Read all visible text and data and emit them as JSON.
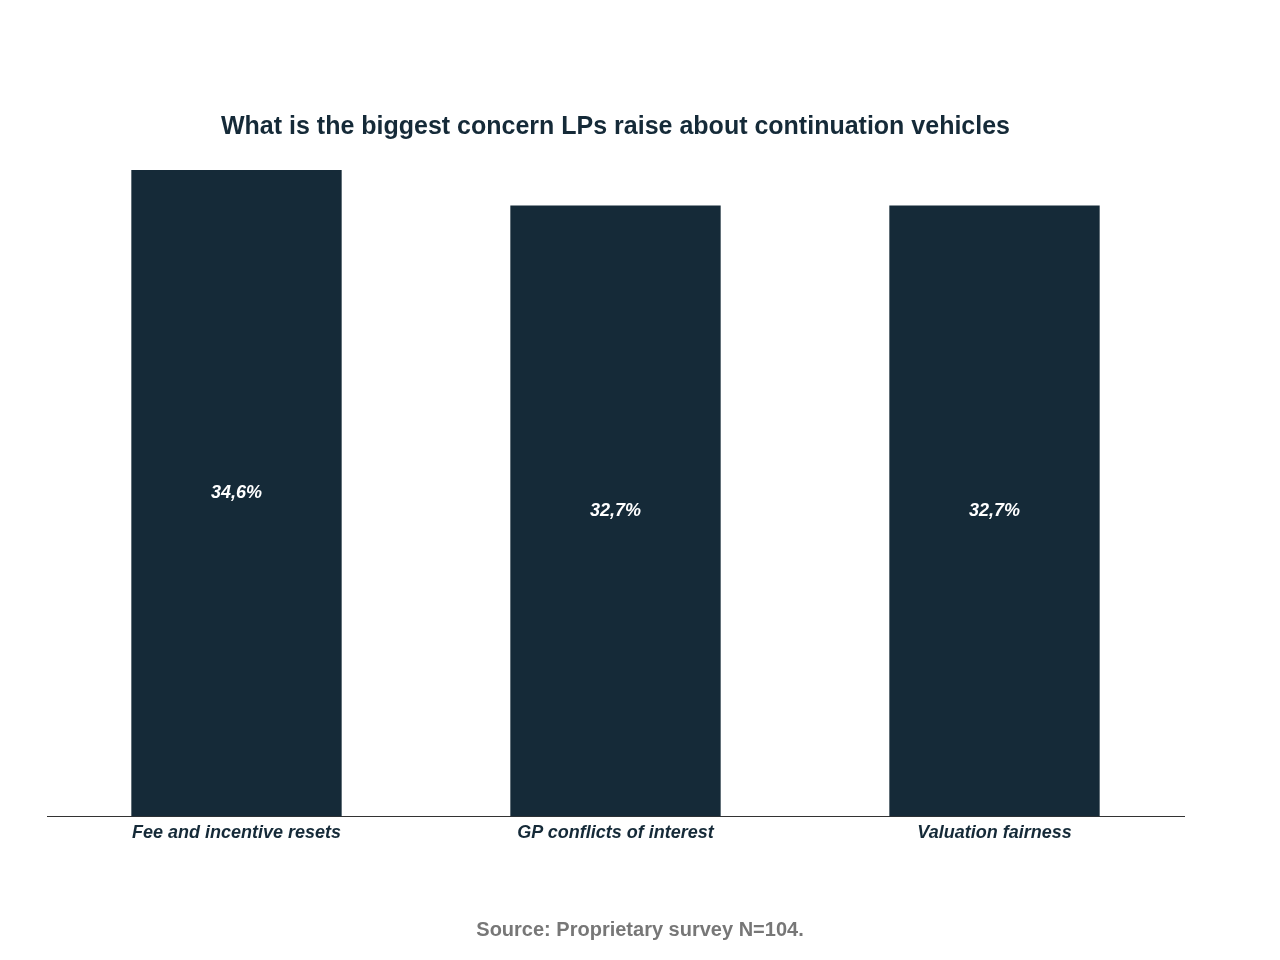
{
  "chart_data": {
    "type": "bar",
    "title": "What is the biggest concern LPs raise about continuation vehicles",
    "categories": [
      "Fee and incentive resets",
      "GP conflicts of interest",
      "Valuation fairness"
    ],
    "values": [
      34.6,
      32.7,
      32.7
    ],
    "color": "#152a38",
    "value_labels": [
      "34,6%",
      "32,7%",
      "32,7%"
    ],
    "annotations": [
      "Source: Proprietary survey N=104."
    ],
    "grid": false,
    "legend": false
  }
}
